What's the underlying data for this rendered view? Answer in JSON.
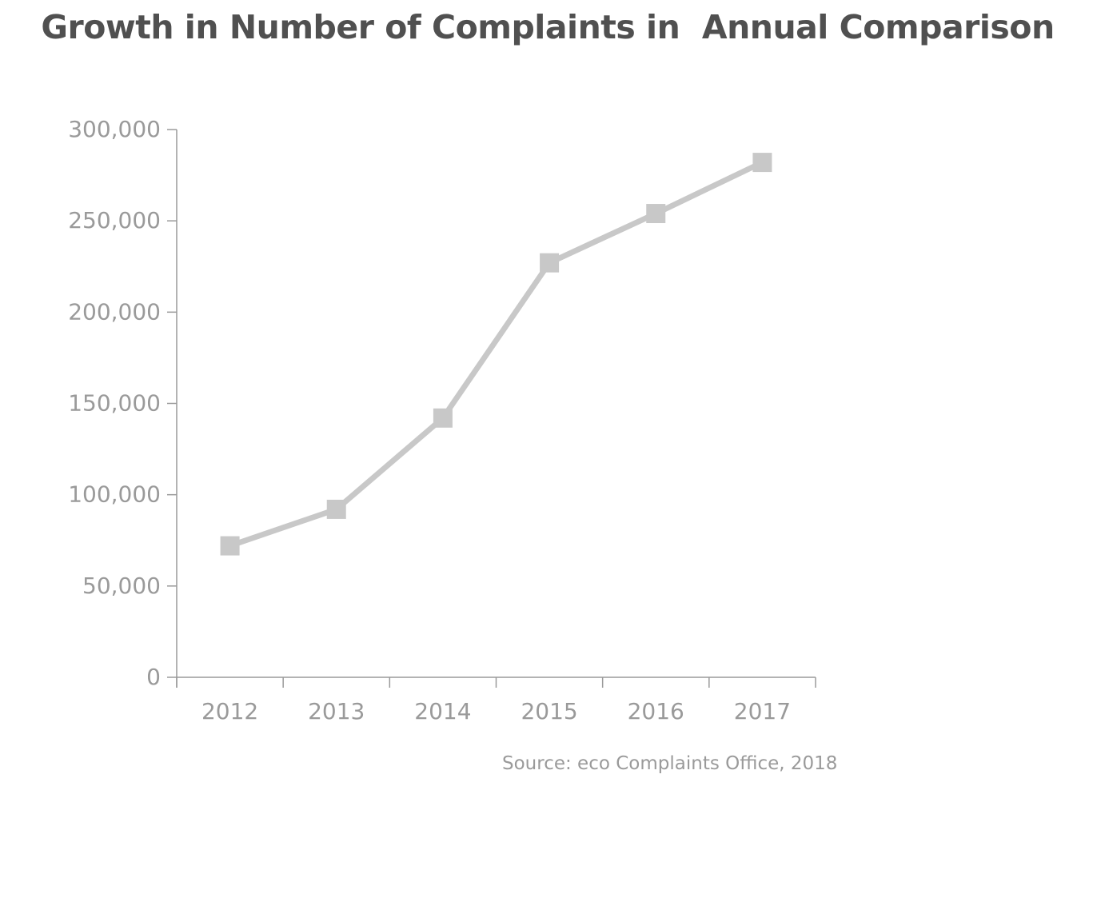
{
  "chart_data": {
    "type": "line",
    "title": "Growth in Number of Complaints in  Annual Comparison",
    "xlabel": "",
    "ylabel": "",
    "categories": [
      "2012",
      "2013",
      "2014",
      "2015",
      "2016",
      "2017"
    ],
    "series": [
      {
        "values": [
          72000,
          92000,
          142000,
          227000,
          254000,
          282000
        ]
      }
    ],
    "ylim": [
      0,
      300000
    ],
    "yticks": [
      0,
      50000,
      100000,
      150000,
      200000,
      250000,
      300000
    ],
    "ytick_labels": [
      "0",
      "50,000",
      "100,000",
      "150,000",
      "200,000",
      "250,000",
      "300,000"
    ],
    "grid": false,
    "legend": "none",
    "marker": "square",
    "line_color": "#c8c8c8",
    "axis_color": "#9a9a9a"
  },
  "source": "Source: eco Complaints Office, 2018"
}
